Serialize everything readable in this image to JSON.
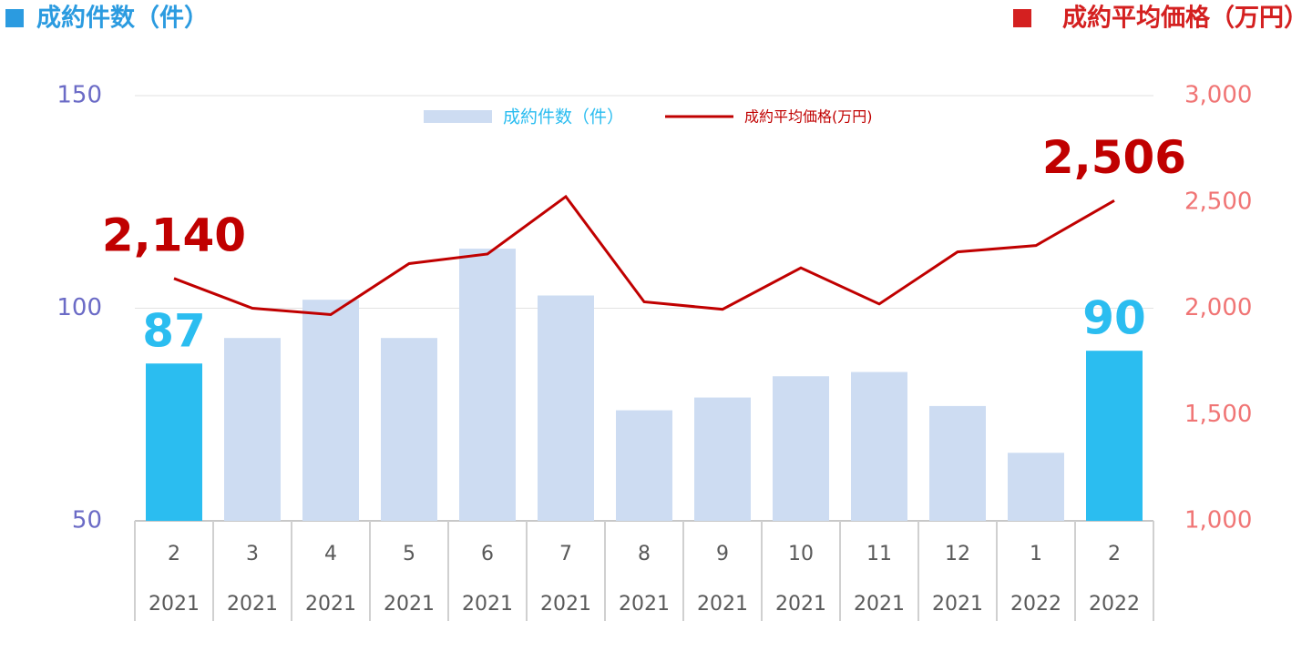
{
  "chart_data": {
    "type": "combo",
    "ylabel": "成約件数（件）",
    "y2label": "成約平均価格（万円）",
    "categories": [
      [
        "2",
        "2021"
      ],
      [
        "3",
        "2021"
      ],
      [
        "4",
        "2021"
      ],
      [
        "5",
        "2021"
      ],
      [
        "6",
        "2021"
      ],
      [
        "7",
        "2021"
      ],
      [
        "8",
        "2021"
      ],
      [
        "9",
        "2021"
      ],
      [
        "10",
        "2021"
      ],
      [
        "11",
        "2021"
      ],
      [
        "12",
        "2021"
      ],
      [
        "1",
        "2022"
      ],
      [
        "2",
        "2022"
      ]
    ],
    "series": [
      {
        "name": "成約件数（件）",
        "type": "bar",
        "color": "#cddcf2",
        "highlight_color": "#2bbdf0",
        "axis": "y",
        "values": [
          87,
          93,
          102,
          93,
          114,
          103,
          76,
          79,
          84,
          85,
          77,
          66,
          90
        ],
        "value_labels": [
          "87",
          null,
          null,
          null,
          null,
          null,
          null,
          null,
          null,
          null,
          null,
          null,
          "90"
        ]
      },
      {
        "name": "成約平均価格(万円)",
        "type": "line",
        "color": "#c00000",
        "axis": "y2",
        "values": [
          2140,
          2000,
          1970,
          2210,
          2255,
          2525,
          2030,
          1995,
          2190,
          2020,
          2265,
          2295,
          2506
        ],
        "value_labels": [
          "2,140",
          null,
          null,
          null,
          null,
          null,
          null,
          null,
          null,
          null,
          null,
          null,
          "2,506"
        ]
      }
    ],
    "ylim": [
      50,
      150
    ],
    "yticks": [
      50,
      100,
      150
    ],
    "y2lim": [
      1000,
      3000
    ],
    "y2ticks": [
      {
        "value": 1000,
        "label": "1,000"
      },
      {
        "value": 1500,
        "label": "1,500"
      },
      {
        "value": 2000,
        "label": "2,000"
      },
      {
        "value": 2500,
        "label": "2,500"
      },
      {
        "value": 3000,
        "label": "3,000"
      }
    ],
    "grid": true,
    "legend": "top"
  }
}
